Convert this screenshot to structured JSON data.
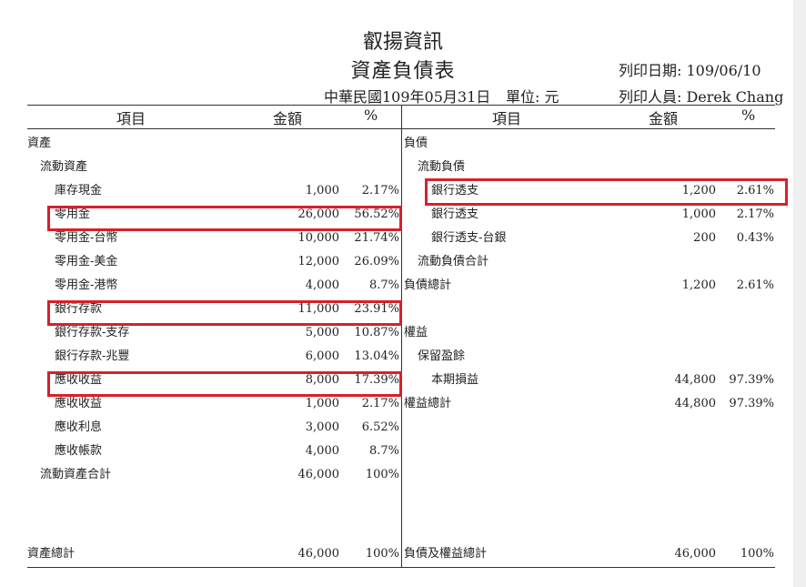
{
  "header": {
    "company": "叡揚資訊",
    "title": "資產負債表",
    "date_line": "中華民國109年05月31日",
    "unit": "單位: 元",
    "print_date": "列印日期: 109/06/10",
    "print_user": "列印人員: Derek Chang"
  },
  "columns": {
    "left_item": "項目",
    "left_amount": "金額",
    "left_pct": "%",
    "right_item": "項目",
    "right_amount": "金額",
    "right_pct": "%"
  },
  "left_rows": [
    {
      "label": "資產",
      "amount": "",
      "pct": ""
    },
    {
      "label": "流動資產",
      "amount": "",
      "pct": ""
    },
    {
      "label": "庫存現金",
      "amount": "1,000",
      "pct": "2.17%"
    },
    {
      "label": "零用金",
      "amount": "26,000",
      "pct": "56.52%"
    },
    {
      "label": "零用金-台幣",
      "amount": "10,000",
      "pct": "21.74%"
    },
    {
      "label": "零用金-美金",
      "amount": "12,000",
      "pct": "26.09%"
    },
    {
      "label": "零用金-港幣",
      "amount": "4,000",
      "pct": "8.7%"
    },
    {
      "label": "銀行存款",
      "amount": "11,000",
      "pct": "23.91%"
    },
    {
      "label": "銀行存款-支存",
      "amount": "5,000",
      "pct": "10.87%"
    },
    {
      "label": "銀行存款-兆豐",
      "amount": "6,000",
      "pct": "13.04%"
    },
    {
      "label": "應收收益",
      "amount": "8,000",
      "pct": "17.39%"
    },
    {
      "label": "應收收益",
      "amount": "1,000",
      "pct": "2.17%"
    },
    {
      "label": "應收利息",
      "amount": "3,000",
      "pct": "6.52%"
    },
    {
      "label": "應收帳款",
      "amount": "4,000",
      "pct": "8.7%"
    },
    {
      "label": "流動資產合計",
      "amount": "46,000",
      "pct": "100%"
    }
  ],
  "right_rows": [
    {
      "label": "負債",
      "amount": "",
      "pct": ""
    },
    {
      "label": "流動負債",
      "amount": "",
      "pct": ""
    },
    {
      "label": "銀行透支",
      "amount": "1,200",
      "pct": "2.61%"
    },
    {
      "label": "銀行透支",
      "amount": "1,000",
      "pct": "2.17%"
    },
    {
      "label": "銀行透支-台銀",
      "amount": "200",
      "pct": "0.43%"
    },
    {
      "label": "流動負債合計",
      "amount": "",
      "pct": ""
    },
    {
      "label": "負債總計",
      "amount": "1,200",
      "pct": "2.61%"
    },
    {
      "label": "",
      "amount": "",
      "pct": ""
    },
    {
      "label": "權益",
      "amount": "",
      "pct": ""
    },
    {
      "label": "保留盈餘",
      "amount": "",
      "pct": ""
    },
    {
      "label": "本期損益",
      "amount": "44,800",
      "pct": "97.39%"
    },
    {
      "label": "權益總計",
      "amount": "44,800",
      "pct": "97.39%"
    }
  ],
  "totals": {
    "left_label": "資產總計",
    "left_amount": "46,000",
    "left_pct": "100%",
    "right_label": "負債及權益總計",
    "right_amount": "46,000",
    "right_pct": "100%"
  },
  "highlight_color": "#d8202a"
}
